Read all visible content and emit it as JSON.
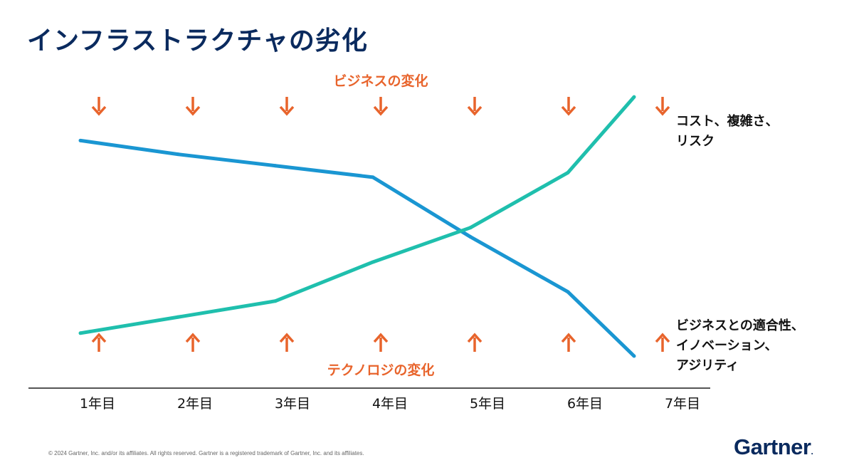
{
  "slide": {
    "title": "インフラストラクチャの劣化",
    "footer": "© 2024 Gartner, Inc. and/or its affiliates. All rights reserved. Gartner is a registered trademark of Gartner, Inc. and its affiliates.",
    "logo": "Gartner",
    "logo_mark": "."
  },
  "colors": {
    "title": "#0a2a5e",
    "arrow": "#e8642c",
    "business_fit_line": "#1a96d2",
    "cost_line": "#1fbfad",
    "axis": "#555555"
  },
  "chart_data": {
    "type": "line",
    "categories": [
      "1年目",
      "2年目",
      "3年目",
      "4年目",
      "5年目",
      "6年目",
      "7年目"
    ],
    "top_annotation": "ビジネスの変化",
    "bottom_annotation": "テクノロジの変化",
    "ylim": [
      0,
      100
    ],
    "series": [
      {
        "name": "ビジネスとの適合性、イノベーション、アジリティ",
        "label_lines": [
          "ビジネスとの適合性、",
          "イノベーション、",
          "アジリティ"
        ],
        "color": "#1a96d2",
        "values": [
          94,
          88,
          83,
          78,
          52,
          28,
          0
        ]
      },
      {
        "name": "コスト、複雑さ、リスク",
        "label_lines": [
          "コスト、複雑さ、",
          "リスク"
        ],
        "color": "#1fbfad",
        "values": [
          10,
          17,
          24,
          41,
          56,
          80,
          113
        ]
      }
    ]
  }
}
